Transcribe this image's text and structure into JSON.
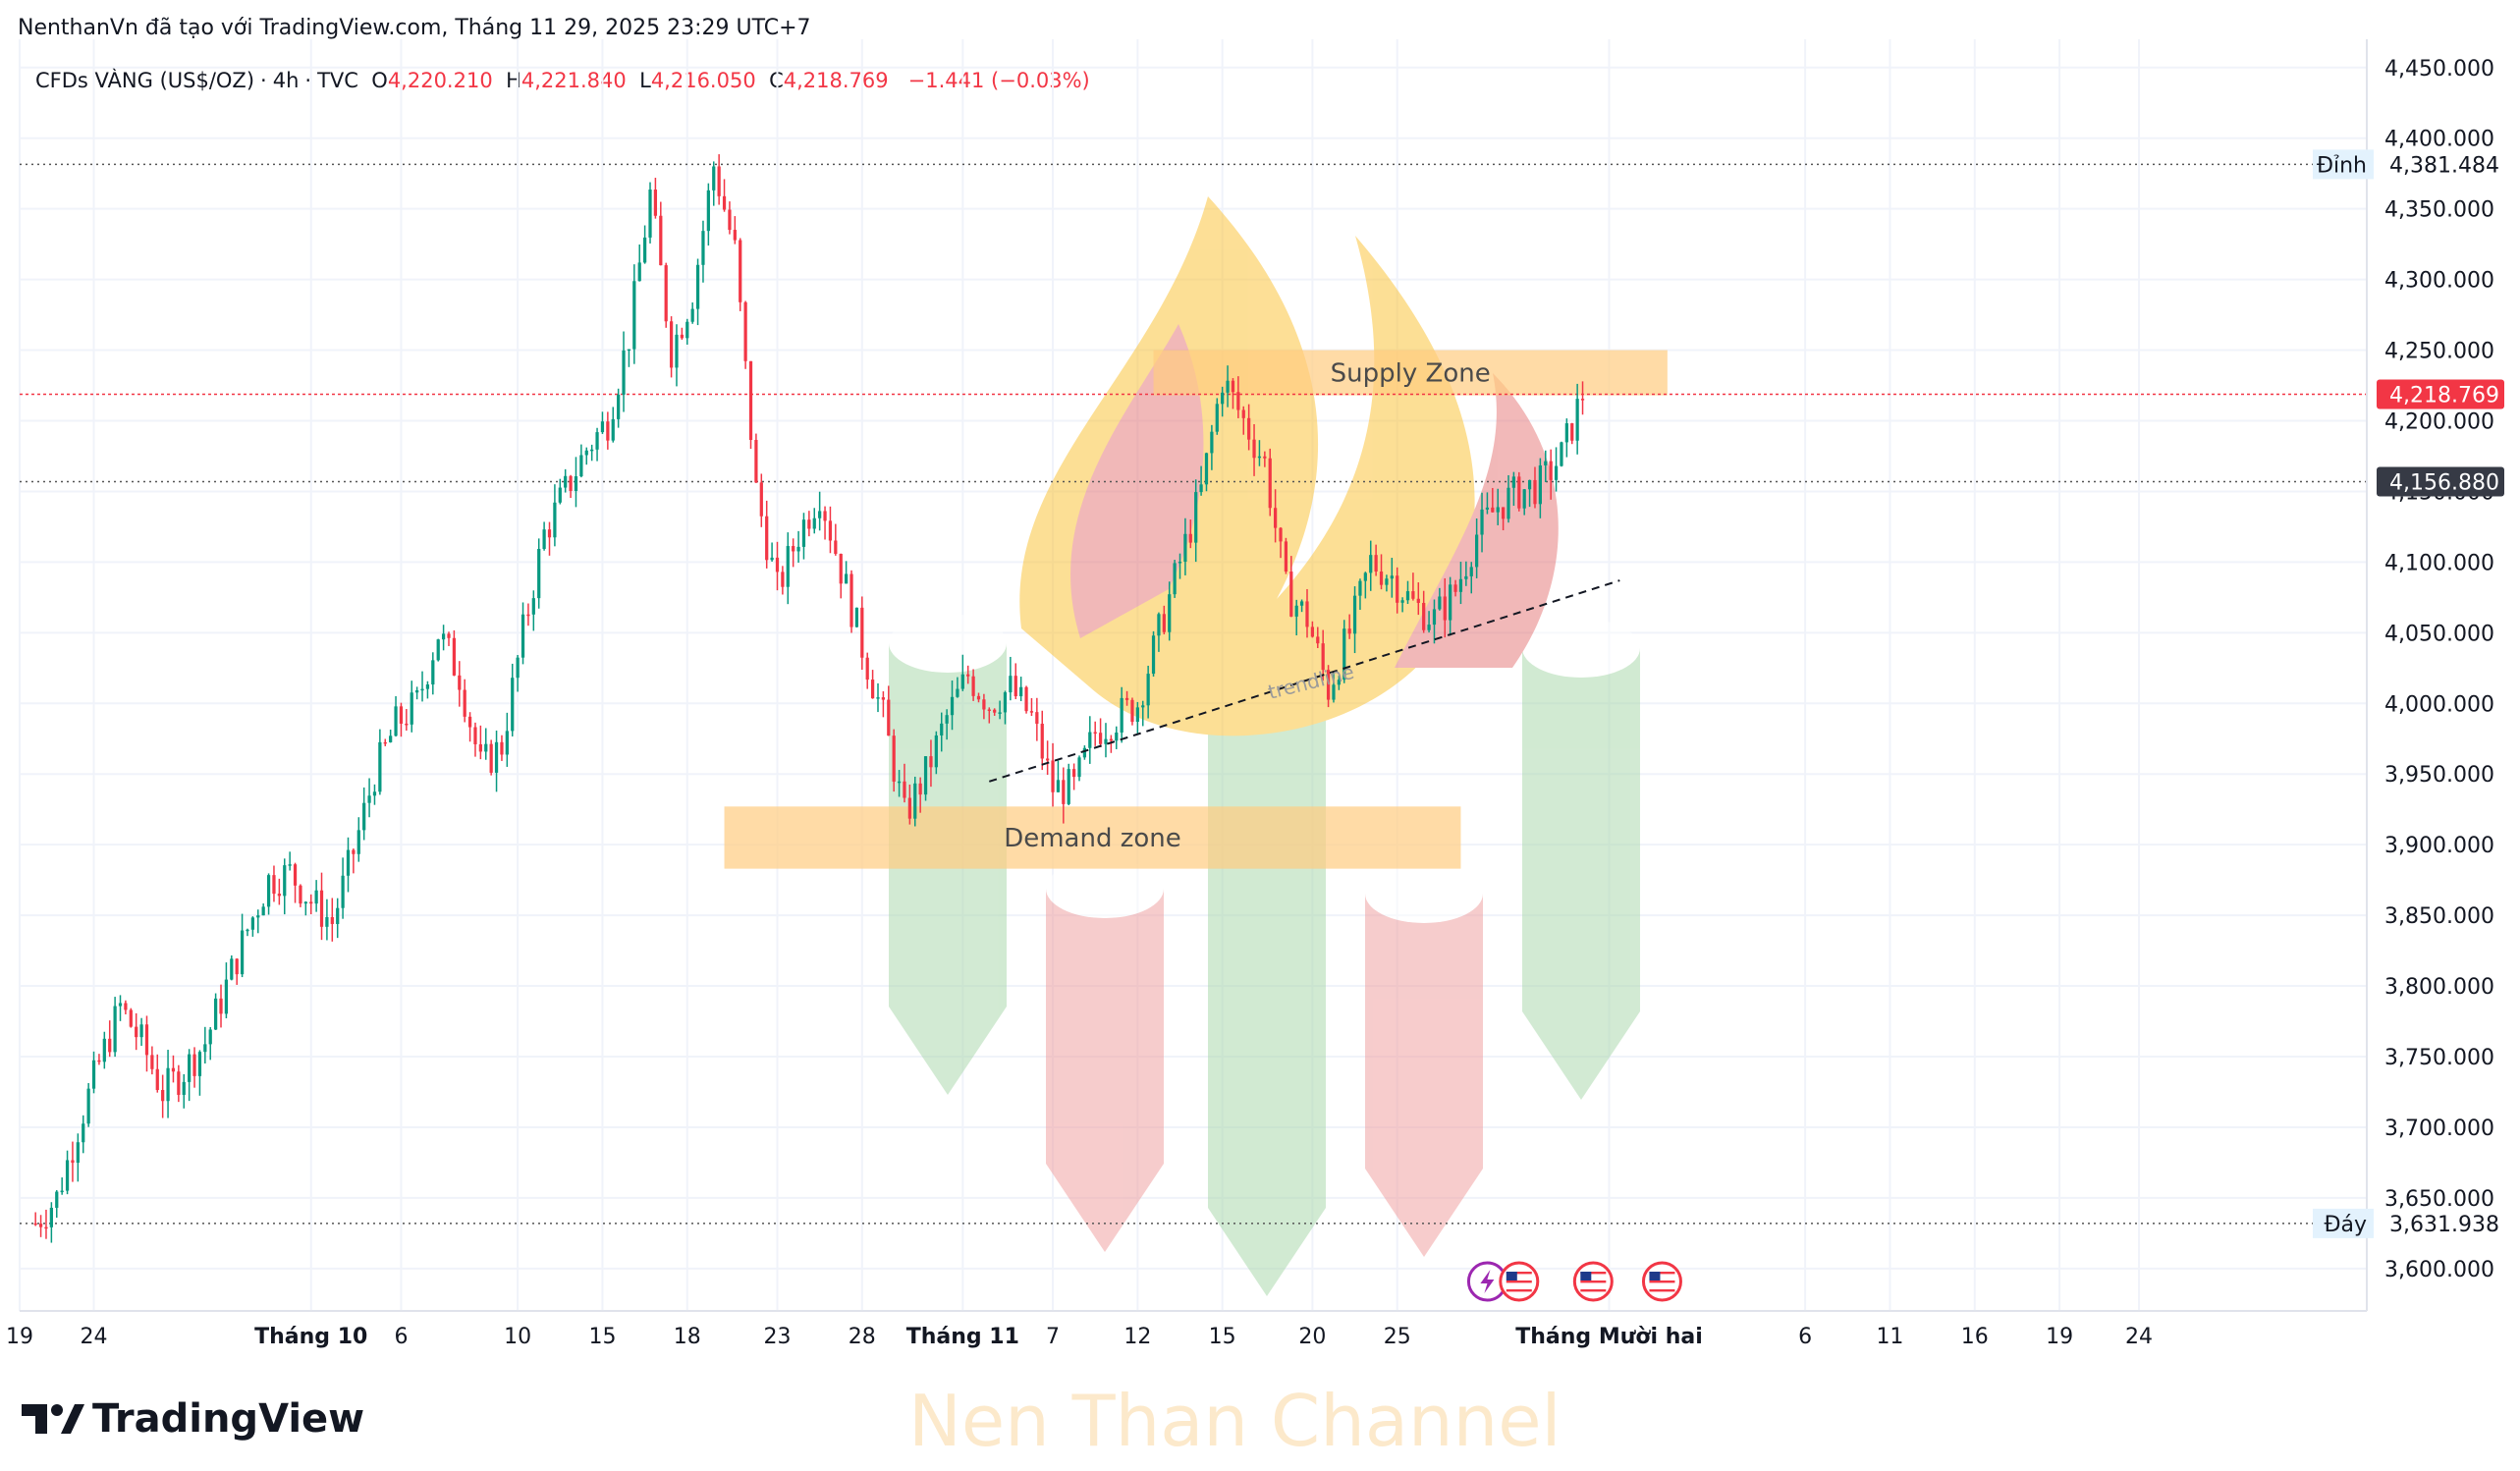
{
  "header": {
    "attribution": "NenthanVn đã tạo với TradingView.com, Tháng 11 29, 2025 23:29 UTC+7"
  },
  "legend": {
    "symbol": "CFDs VÀNG (US$/OZ)",
    "interval": "4h",
    "source": "TVC",
    "o_label": "O",
    "o_value": "4,220.210",
    "h_label": "H",
    "h_value": "4,221.840",
    "l_label": "L",
    "l_value": "4,216.050",
    "c_label": "C",
    "c_value": "4,218.769",
    "change": "−1.441 (−0.03%)"
  },
  "brand": {
    "name": "TradingView"
  },
  "watermark": {
    "channel": "Nen Than Channel"
  },
  "colors": {
    "up": "#089981",
    "down": "#f23645",
    "price_tag": "#f23645",
    "level_tag": "#363a45",
    "zone": "#ffcc80"
  },
  "icons": [
    "flash-icon",
    "us-flag-icon",
    "us-flag-icon",
    "us-flag-icon"
  ],
  "chart_data": {
    "type": "candlestick",
    "title": "",
    "ylim": [
      3570,
      4470
    ],
    "y_ticks": [
      "3,600.000",
      "3,650.000",
      "3,700.000",
      "3,750.000",
      "3,800.000",
      "3,850.000",
      "3,900.000",
      "3,950.000",
      "4,000.000",
      "4,050.000",
      "4,100.000",
      "4,150.000",
      "4,200.000",
      "4,250.000",
      "4,300.000",
      "4,350.000",
      "4,400.000",
      "4,450.000"
    ],
    "x_ticks": [
      "19",
      "24",
      "Tháng 10",
      "6",
      "10",
      "15",
      "18",
      "23",
      "28",
      "Tháng 11",
      "7",
      "12",
      "15",
      "20",
      "25",
      "Tháng Mười hai",
      "6",
      "11",
      "16",
      "19",
      "24"
    ],
    "path": [
      [
        0,
        3632
      ],
      [
        4,
        3650
      ],
      [
        8,
        3700
      ],
      [
        12,
        3745
      ],
      [
        16,
        3785
      ],
      [
        20,
        3760
      ],
      [
        24,
        3725
      ],
      [
        28,
        3740
      ],
      [
        32,
        3760
      ],
      [
        36,
        3800
      ],
      [
        40,
        3840
      ],
      [
        44,
        3875
      ],
      [
        48,
        3880
      ],
      [
        52,
        3860
      ],
      [
        56,
        3845
      ],
      [
        60,
        3895
      ],
      [
        64,
        3950
      ],
      [
        68,
        3985
      ],
      [
        72,
        4000
      ],
      [
        76,
        4050
      ],
      [
        80,
        4020
      ],
      [
        84,
        3955
      ],
      [
        88,
        3970
      ],
      [
        92,
        4050
      ],
      [
        96,
        4120
      ],
      [
        100,
        4150
      ],
      [
        104,
        4180
      ],
      [
        108,
        4200
      ],
      [
        112,
        4260
      ],
      [
        116,
        4360
      ],
      [
        120,
        4250
      ],
      [
        124,
        4290
      ],
      [
        128,
        4381
      ],
      [
        132,
        4320
      ],
      [
        136,
        4150
      ],
      [
        140,
        4080
      ],
      [
        144,
        4120
      ],
      [
        148,
        4150
      ],
      [
        152,
        4095
      ],
      [
        156,
        4040
      ],
      [
        160,
        3990
      ],
      [
        164,
        3920
      ],
      [
        168,
        3950
      ],
      [
        172,
        3990
      ],
      [
        176,
        4020
      ],
      [
        180,
        4000
      ],
      [
        184,
        4010
      ],
      [
        188,
        3990
      ],
      [
        192,
        3940
      ],
      [
        196,
        3940
      ],
      [
        200,
        3980
      ],
      [
        204,
        3990
      ],
      [
        208,
        4000
      ],
      [
        212,
        4050
      ],
      [
        216,
        4100
      ],
      [
        220,
        4150
      ],
      [
        224,
        4230
      ],
      [
        228,
        4200
      ],
      [
        232,
        4170
      ],
      [
        236,
        4080
      ],
      [
        240,
        4060
      ],
      [
        244,
        4010
      ],
      [
        248,
        4050
      ],
      [
        252,
        4100
      ],
      [
        256,
        4090
      ],
      [
        260,
        4070
      ],
      [
        264,
        4060
      ],
      [
        268,
        4080
      ],
      [
        272,
        4120
      ],
      [
        276,
        4140
      ],
      [
        280,
        4150
      ],
      [
        284,
        4155
      ],
      [
        288,
        4175
      ],
      [
        292,
        4219
      ]
    ],
    "bars": 293,
    "horizontal_levels": [
      {
        "name": "Đỉnh",
        "value": 4381.484,
        "label": "4,381.484"
      },
      {
        "name": "Đáy",
        "value": 3631.938,
        "label": "3,631.938"
      },
      {
        "name": "",
        "value": 4156.88,
        "label": "4,156.880"
      },
      {
        "name": "",
        "value": 4218.769,
        "label": "4,218.769"
      }
    ],
    "zones": [
      {
        "label": "Supply Zone",
        "from": 4218,
        "to": 4250
      },
      {
        "label": "Demand zone",
        "from": 3883,
        "to": 3927
      }
    ],
    "trendline": {
      "label": "trendline",
      "from": [
        3944.7,
        3932
      ],
      "to": [
        4087,
        4087
      ]
    },
    "ranges": {
      "x": {
        "bar_start": 0,
        "bar_end": 292,
        "view_start": -3,
        "view_end": 440
      },
      "x_tick_bars": [
        -3,
        11,
        52,
        69,
        91,
        107,
        123,
        140,
        156,
        175,
        192,
        208,
        224,
        241,
        257,
        297,
        334,
        350,
        366,
        382,
        397
      ],
      "zone_bars": {
        "supply": [
          211,
          308
        ],
        "demand": [
          130,
          269
        ]
      },
      "trendline_bars": [
        180,
        299
      ],
      "trendline_label_bar": 233,
      "event_icon_bars": [
        274,
        280,
        294,
        307
      ]
    }
  }
}
